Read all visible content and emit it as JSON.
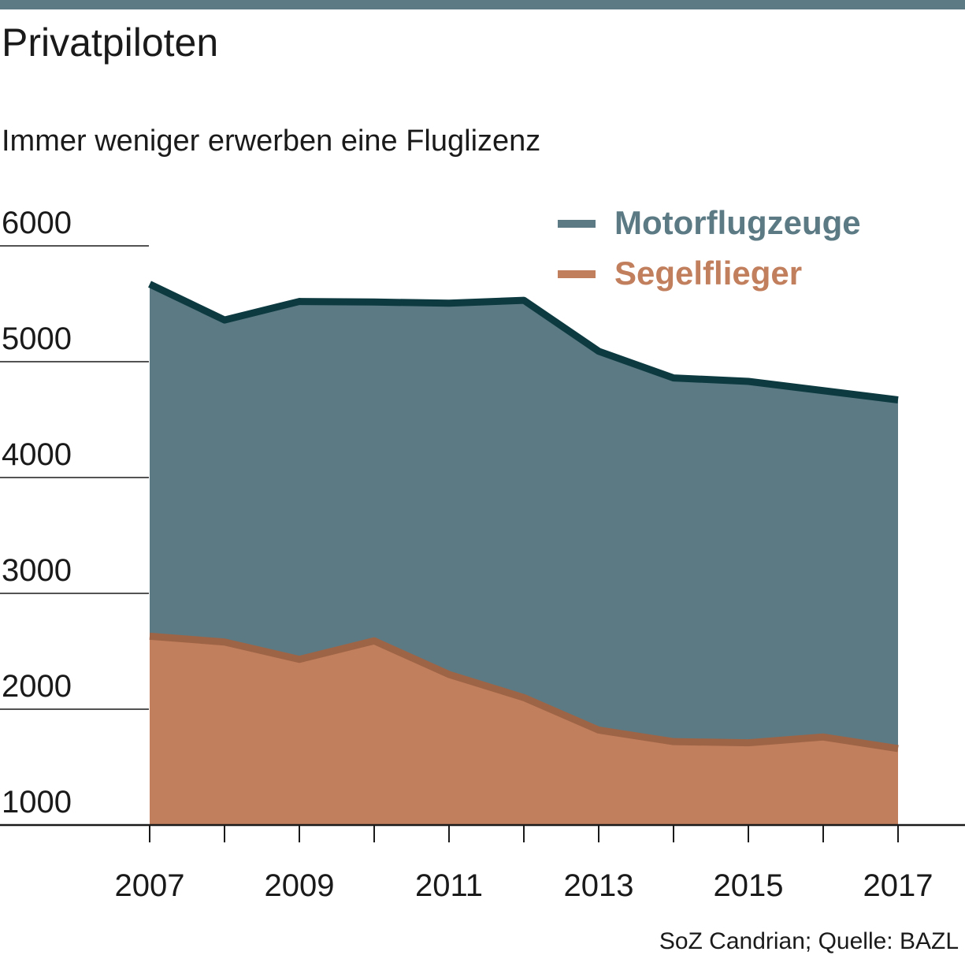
{
  "title": "Privatpiloten",
  "subtitle": "Immer weniger erwerben eine Fluglizenz",
  "source": "SoZ Candrian; Quelle: BAZL",
  "colors": {
    "motor_fill": "#5b7a84",
    "motor_line": "#0d3a40",
    "segel_fill": "#c27f5d",
    "segel_line": "#9e6446",
    "axis": "#1a1a1a"
  },
  "chart_data": {
    "type": "area",
    "title": "Privatpiloten",
    "subtitle": "Immer weniger erwerben eine Fluglizenz",
    "xlabel": "",
    "ylabel": "",
    "x": [
      2007,
      2008,
      2009,
      2010,
      2011,
      2012,
      2013,
      2014,
      2015,
      2016,
      2017
    ],
    "x_tick_labels": [
      "2007",
      "2009",
      "2011",
      "2013",
      "2015",
      "2017"
    ],
    "y_tick_labels": [
      "1000",
      "2000",
      "3000",
      "4000",
      "5000",
      "6000"
    ],
    "ylim": [
      1000,
      6000
    ],
    "xlim": [
      2007,
      2018
    ],
    "grid": false,
    "legend_position": "top-right",
    "series": [
      {
        "name": "Motorflugzeuge",
        "values": [
          5670,
          5360,
          5520,
          5515,
          5505,
          5530,
          5090,
          4860,
          4830,
          4750,
          4670
        ]
      },
      {
        "name": "Segelflieger",
        "values": [
          2630,
          2580,
          2430,
          2590,
          2300,
          2100,
          1820,
          1720,
          1710,
          1760,
          1660
        ]
      }
    ]
  }
}
